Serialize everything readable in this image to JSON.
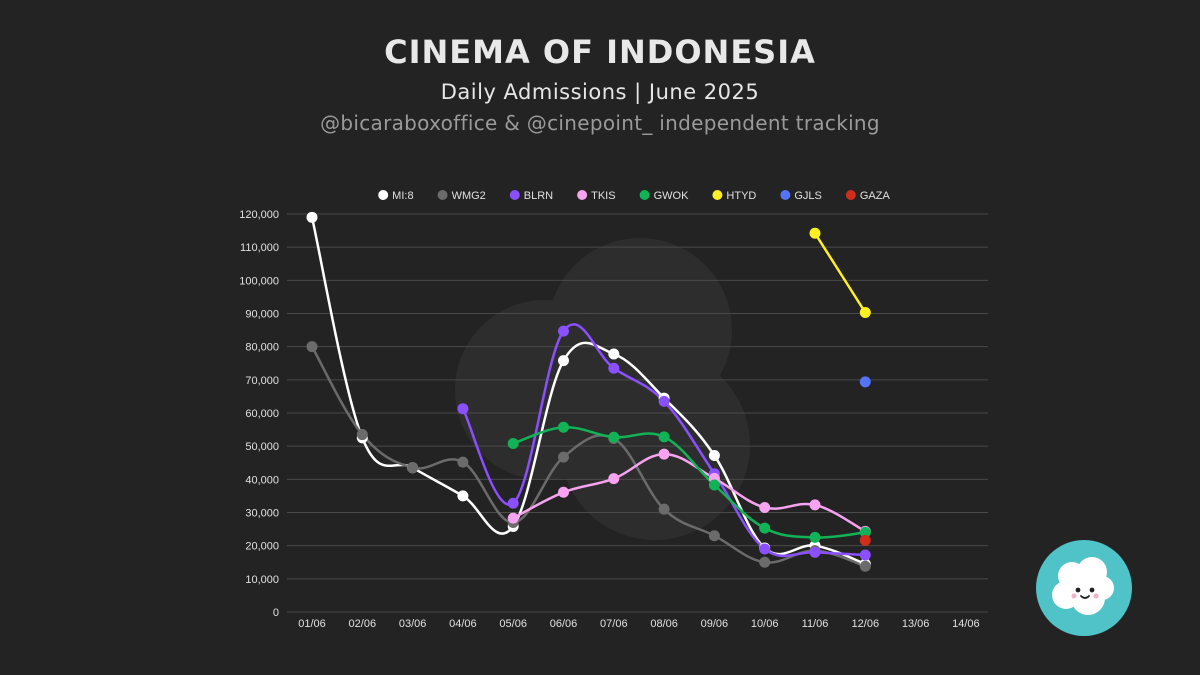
{
  "header": {
    "title": "CINEMA OF INDONESIA",
    "subtitle": "Daily Admissions | June 2025",
    "credit": "@bicaraboxoffice & @cinepoint_ independent tracking"
  },
  "chart_data": {
    "type": "line",
    "categories": [
      "01/06",
      "02/06",
      "03/06",
      "04/06",
      "05/06",
      "06/06",
      "07/06",
      "08/06",
      "09/06",
      "10/06",
      "11/06",
      "12/06",
      "13/06",
      "14/06"
    ],
    "ylim": [
      0,
      120000
    ],
    "yticks": [
      0,
      10000,
      20000,
      30000,
      40000,
      50000,
      60000,
      70000,
      80000,
      90000,
      100000,
      110000,
      120000
    ],
    "ytick_labels": [
      "0",
      "10,000",
      "20,000",
      "30,000",
      "40,000",
      "50,000",
      "60,000",
      "70,000",
      "80,000",
      "90,000",
      "100,000",
      "110,000",
      "120,000"
    ],
    "grid": true,
    "legend_position": "top-center",
    "series": [
      {
        "name": "MI:8",
        "color": "#ffffff",
        "values": [
          119000,
          52500,
          43500,
          35000,
          25800,
          75800,
          77800,
          64500,
          47200,
          19300,
          20000,
          14500,
          null,
          null
        ]
      },
      {
        "name": "WMG2",
        "color": "#6b6b6b",
        "values": [
          80000,
          53500,
          43500,
          45200,
          27000,
          46700,
          52300,
          31000,
          23000,
          15000,
          18500,
          13800,
          null,
          null
        ]
      },
      {
        "name": "BLRN",
        "color": "#8a4fff",
        "values": [
          null,
          null,
          null,
          61300,
          32800,
          84700,
          73500,
          63500,
          41700,
          19000,
          18000,
          17200,
          null,
          null
        ]
      },
      {
        "name": "TKIS",
        "color": "#f7a3f0",
        "values": [
          null,
          null,
          null,
          null,
          28300,
          36100,
          40200,
          47600,
          40300,
          31500,
          32300,
          24300,
          null,
          null
        ]
      },
      {
        "name": "GWOK",
        "color": "#12b356",
        "values": [
          null,
          null,
          null,
          null,
          50800,
          55700,
          52700,
          52800,
          38300,
          25300,
          22500,
          24000,
          null,
          null
        ]
      },
      {
        "name": "HTYD",
        "color": "#fff023",
        "values": [
          null,
          null,
          null,
          null,
          null,
          null,
          null,
          null,
          null,
          null,
          114200,
          90300,
          null,
          null
        ]
      },
      {
        "name": "GJLS",
        "color": "#5473f7",
        "values": [
          null,
          null,
          null,
          null,
          null,
          null,
          null,
          null,
          null,
          null,
          null,
          69400,
          null,
          null
        ]
      },
      {
        "name": "GAZA",
        "color": "#d12d1c",
        "values": [
          null,
          null,
          null,
          null,
          null,
          null,
          null,
          null,
          null,
          null,
          null,
          21600,
          null,
          null
        ]
      }
    ]
  },
  "colors": {
    "background": "#232323",
    "gridline": "#4a4a4a",
    "axis_text": "#e0e0e0",
    "logo_circle": "#4fc3c7"
  },
  "icons": {
    "logo": "popcorn-cloud-logo",
    "watermark": "popcorn-watermark-icon"
  }
}
